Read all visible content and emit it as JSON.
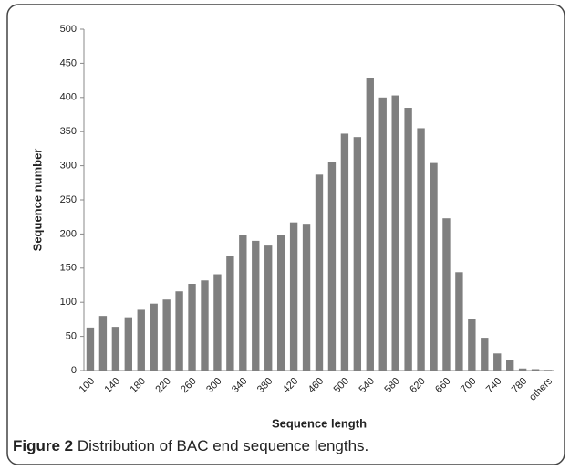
{
  "chart_data": {
    "type": "bar",
    "x_label": "Sequence length",
    "y_label": "Sequence number",
    "figure_label": "Figure 2",
    "caption": "Distribution of BAC end sequence lengths.",
    "categories": [
      "100",
      null,
      "140",
      null,
      "180",
      null,
      "220",
      null,
      "260",
      null,
      "300",
      null,
      "340",
      null,
      "380",
      null,
      "420",
      null,
      "460",
      null,
      "500",
      null,
      "540",
      null,
      "580",
      null,
      "620",
      null,
      "660",
      null,
      "700",
      null,
      "740",
      null,
      "780",
      null,
      "others"
    ],
    "values": [
      63,
      80,
      64,
      78,
      89,
      98,
      104,
      116,
      127,
      132,
      141,
      168,
      199,
      190,
      183,
      199,
      217,
      215,
      287,
      305,
      347,
      342,
      429,
      400,
      403,
      385,
      355,
      304,
      223,
      144,
      75,
      48,
      25,
      15,
      3,
      2,
      1
    ],
    "color": "#7f7f7f",
    "ylim": [
      0,
      500
    ],
    "yticks": [
      0,
      50,
      100,
      150,
      200,
      250,
      300,
      350,
      400,
      450,
      500
    ],
    "grid": false
  }
}
